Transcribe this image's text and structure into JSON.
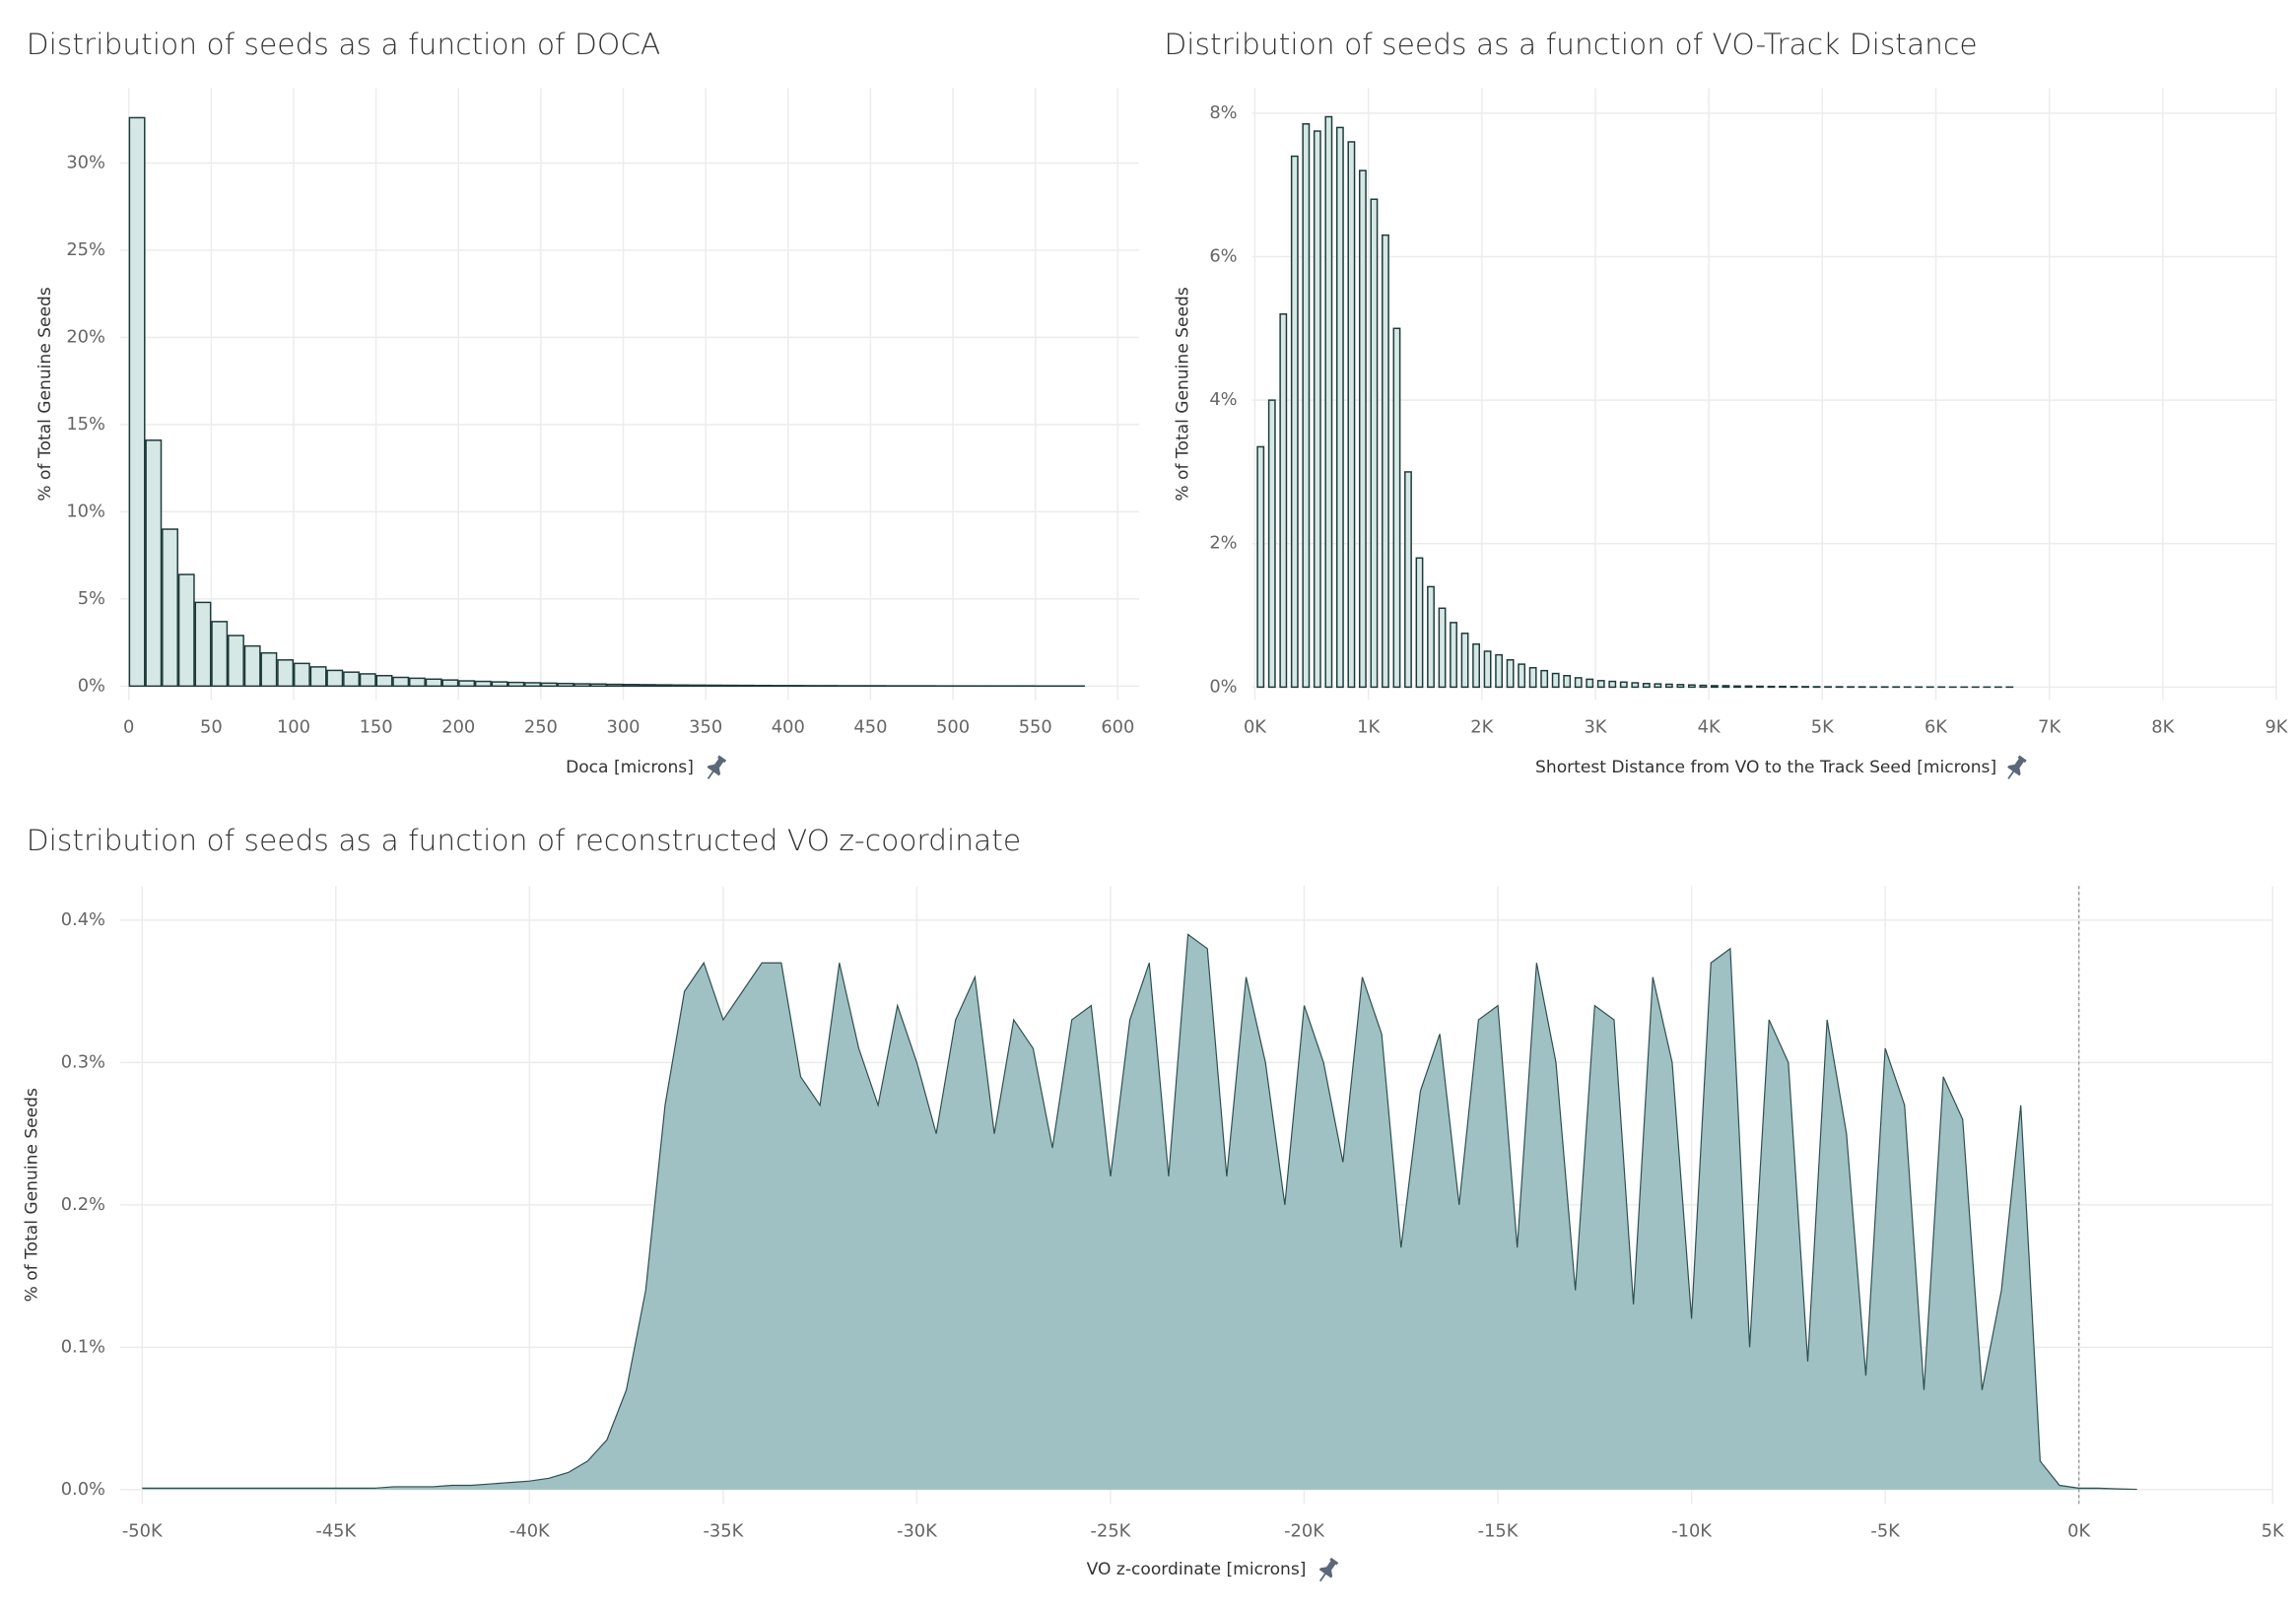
{
  "chart_data": [
    {
      "type": "histogram",
      "title": "Distribution of seeds as a function of DOCA",
      "x_label": "Doca [microns]",
      "y_label": "% of Total Genuine Seeds",
      "bins": [
        0,
        10,
        20,
        30,
        40,
        50,
        60,
        70,
        80,
        90,
        100,
        110,
        120,
        130,
        140,
        150,
        160,
        170,
        180,
        190,
        200,
        210,
        220,
        230,
        240,
        250,
        260,
        270,
        280,
        290,
        300,
        310,
        320,
        330,
        340,
        350,
        360,
        370,
        380,
        390,
        400,
        410,
        420,
        430,
        440,
        450,
        460,
        470,
        480,
        490,
        500,
        510,
        520,
        530,
        540,
        550,
        560,
        570,
        580
      ],
      "values": [
        32.6,
        14.1,
        9.0,
        6.4,
        4.8,
        3.7,
        2.9,
        2.3,
        1.9,
        1.5,
        1.3,
        1.1,
        0.9,
        0.8,
        0.7,
        0.6,
        0.5,
        0.45,
        0.4,
        0.35,
        0.3,
        0.27,
        0.24,
        0.21,
        0.19,
        0.17,
        0.15,
        0.13,
        0.12,
        0.1,
        0.09,
        0.08,
        0.07,
        0.06,
        0.055,
        0.05,
        0.045,
        0.04,
        0.035,
        0.03,
        0.03,
        0.025,
        0.025,
        0.02,
        0.02,
        0.02,
        0.015,
        0.015,
        0.015,
        0.01,
        0.01,
        0.01,
        0.01,
        0.01,
        0.01,
        0.005,
        0.005,
        0.005
      ],
      "color": "#d6e8e6",
      "edgecolor": "#1d3a3a",
      "xlim": [
        -5.3,
        613
      ],
      "xticks": [
        0,
        50,
        100,
        150,
        200,
        250,
        300,
        350,
        400,
        450,
        500,
        550,
        600
      ],
      "ylim": [
        -0.8,
        34.3
      ],
      "yticks": [
        {
          "value": 0,
          "label": "0%"
        },
        {
          "value": 5,
          "label": "5%"
        },
        {
          "value": 10,
          "label": "10%"
        },
        {
          "value": 15,
          "label": "15%"
        },
        {
          "value": 20,
          "label": "20%"
        },
        {
          "value": 25,
          "label": "25%"
        },
        {
          "value": 30,
          "label": "30%"
        }
      ],
      "grid": true
    },
    {
      "type": "histogram",
      "title": "Distribution of seeds as a function of VO-Track Distance",
      "x_label": "Shortest Distance from VO to the Track Seed [microns]",
      "y_label": "% of Total Genuine Seeds",
      "bins": [
        0,
        100,
        200,
        300,
        400,
        500,
        600,
        700,
        800,
        900,
        1000,
        1100,
        1200,
        1300,
        1400,
        1500,
        1600,
        1700,
        1800,
        1900,
        2000,
        2100,
        2200,
        2300,
        2400,
        2500,
        2600,
        2700,
        2800,
        2900,
        3000,
        3100,
        3200,
        3300,
        3400,
        3500,
        3600,
        3700,
        3800,
        3900,
        4000,
        4100,
        4200,
        4300,
        4400,
        4500,
        4600,
        4700,
        4800,
        4900,
        5000,
        5100,
        5200,
        5300,
        5400,
        5500,
        5600,
        5700,
        5800,
        5900,
        6000,
        6100,
        6200,
        6300,
        6400,
        6500,
        6600,
        6700
      ],
      "values": [
        3.35,
        4.0,
        5.2,
        7.4,
        7.85,
        7.75,
        7.95,
        7.8,
        7.6,
        7.2,
        6.8,
        6.3,
        5.0,
        3.0,
        1.8,
        1.4,
        1.1,
        0.9,
        0.75,
        0.6,
        0.5,
        0.45,
        0.38,
        0.32,
        0.27,
        0.23,
        0.19,
        0.16,
        0.13,
        0.11,
        0.09,
        0.08,
        0.07,
        0.06,
        0.05,
        0.045,
        0.04,
        0.035,
        0.03,
        0.025,
        0.02,
        0.02,
        0.015,
        0.015,
        0.012,
        0.01,
        0.01,
        0.008,
        0.007,
        0.006,
        0.005,
        0.005,
        0.004,
        0.004,
        0.003,
        0.003,
        0.003,
        0.002,
        0.002,
        0.002,
        0.002,
        0.001,
        0.001,
        0.001,
        0.001,
        0.001,
        0.001
      ],
      "color": "#d6e8e6",
      "edgecolor": "#1d3a3a",
      "xlim": [
        -26,
        9006
      ],
      "xticks": [
        {
          "value": 0,
          "label": "0K"
        },
        {
          "value": 1000,
          "label": "1K"
        },
        {
          "value": 2000,
          "label": "2K"
        },
        {
          "value": 3000,
          "label": "3K"
        },
        {
          "value": 4000,
          "label": "4K"
        },
        {
          "value": 5000,
          "label": "5K"
        },
        {
          "value": 6000,
          "label": "6K"
        },
        {
          "value": 7000,
          "label": "7K"
        },
        {
          "value": 8000,
          "label": "8K"
        },
        {
          "value": 9000,
          "label": "9K"
        }
      ],
      "ylim": [
        -0.18,
        8.35
      ],
      "yticks": [
        {
          "value": 0,
          "label": "0%"
        },
        {
          "value": 2,
          "label": "2%"
        },
        {
          "value": 4,
          "label": "4%"
        },
        {
          "value": 6,
          "label": "6%"
        },
        {
          "value": 8,
          "label": "8%"
        }
      ],
      "grid": true
    },
    {
      "type": "area",
      "title": "Distribution of seeds as a function of reconstructed VO z-coordinate",
      "x_label": "VO z-coordinate [microns]",
      "y_label": "% of Total Genuine Seeds",
      "x": [
        -50000,
        -49500,
        -49000,
        -48500,
        -48000,
        -47500,
        -47000,
        -46500,
        -46000,
        -45500,
        -45000,
        -44500,
        -44000,
        -43500,
        -43000,
        -42500,
        -42000,
        -41500,
        -41000,
        -40500,
        -40000,
        -39500,
        -39000,
        -38500,
        -38000,
        -37500,
        -37000,
        -36500,
        -36000,
        -35500,
        -35000,
        -34500,
        -34000,
        -33500,
        -33000,
        -32500,
        -32000,
        -31500,
        -31000,
        -30500,
        -30000,
        -29500,
        -29000,
        -28500,
        -28000,
        -27500,
        -27000,
        -26500,
        -26000,
        -25500,
        -25000,
        -24500,
        -24000,
        -23500,
        -23000,
        -22500,
        -22000,
        -21500,
        -21000,
        -20500,
        -20000,
        -19500,
        -19000,
        -18500,
        -18000,
        -17500,
        -17000,
        -16500,
        -16000,
        -15500,
        -15000,
        -14500,
        -14000,
        -13500,
        -13000,
        -12500,
        -12000,
        -11500,
        -11000,
        -10500,
        -10000,
        -9500,
        -9000,
        -8500,
        -8000,
        -7500,
        -7000,
        -6500,
        -6000,
        -5500,
        -5000,
        -4500,
        -4000,
        -3500,
        -3000,
        -2500,
        -2000,
        -1500,
        -1000,
        -500,
        0,
        500,
        1000,
        1500
      ],
      "values": [
        0.001,
        0.001,
        0.001,
        0.001,
        0.001,
        0.001,
        0.001,
        0.001,
        0.001,
        0.001,
        0.001,
        0.001,
        0.001,
        0.002,
        0.002,
        0.002,
        0.003,
        0.003,
        0.004,
        0.005,
        0.006,
        0.008,
        0.012,
        0.02,
        0.035,
        0.07,
        0.14,
        0.27,
        0.35,
        0.37,
        0.33,
        0.35,
        0.37,
        0.37,
        0.29,
        0.27,
        0.37,
        0.31,
        0.27,
        0.34,
        0.3,
        0.25,
        0.33,
        0.36,
        0.25,
        0.33,
        0.31,
        0.24,
        0.33,
        0.34,
        0.22,
        0.33,
        0.37,
        0.22,
        0.39,
        0.38,
        0.22,
        0.36,
        0.3,
        0.2,
        0.34,
        0.3,
        0.23,
        0.36,
        0.32,
        0.17,
        0.28,
        0.32,
        0.2,
        0.33,
        0.34,
        0.17,
        0.37,
        0.3,
        0.14,
        0.34,
        0.33,
        0.13,
        0.36,
        0.3,
        0.12,
        0.37,
        0.38,
        0.1,
        0.33,
        0.3,
        0.09,
        0.33,
        0.25,
        0.08,
        0.31,
        0.27,
        0.07,
        0.29,
        0.26,
        0.07,
        0.14,
        0.27,
        0.02,
        0.003,
        0.001,
        0.001,
        0.0005,
        0.0002
      ],
      "color": "#9fc1c4",
      "edgecolor": "#2f4f4f",
      "reference_x": 0,
      "xlim": [
        -50570,
        5000
      ],
      "xticks": [
        {
          "value": -50000,
          "label": "-50K"
        },
        {
          "value": -45000,
          "label": "-45K"
        },
        {
          "value": -40000,
          "label": "-40K"
        },
        {
          "value": -35000,
          "label": "-35K"
        },
        {
          "value": -30000,
          "label": "-30K"
        },
        {
          "value": -25000,
          "label": "-25K"
        },
        {
          "value": -20000,
          "label": "-20K"
        },
        {
          "value": -15000,
          "label": "-15K"
        },
        {
          "value": -10000,
          "label": "-10K"
        },
        {
          "value": -5000,
          "label": "-5K"
        },
        {
          "value": 0,
          "label": "0K"
        },
        {
          "value": 5000,
          "label": "5K"
        }
      ],
      "ylim": [
        -0.01,
        0.424
      ],
      "yticks": [
        {
          "value": 0,
          "label": "0.0%"
        },
        {
          "value": 0.1,
          "label": "0.1%"
        },
        {
          "value": 0.2,
          "label": "0.2%"
        },
        {
          "value": 0.3,
          "label": "0.3%"
        },
        {
          "value": 0.4,
          "label": "0.4%"
        }
      ],
      "grid": true
    }
  ]
}
